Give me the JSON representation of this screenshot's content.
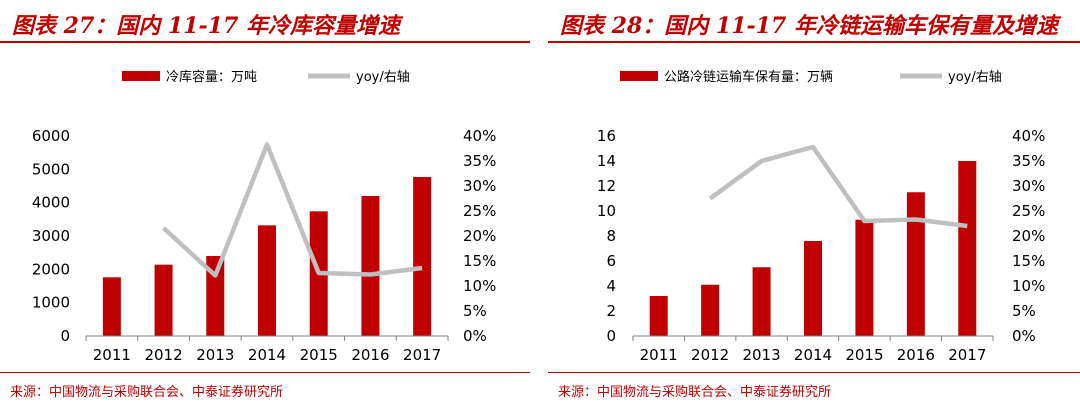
{
  "source_text": "来源：中国物流与采购联合会、中泰证券研究所",
  "charts": [
    {
      "figure_title": "图表 27：国内 11-17 年冷库容量增速",
      "chart_data": {
        "type": "bar",
        "categories": [
          "2011",
          "2012",
          "2013",
          "2014",
          "2015",
          "2016",
          "2017"
        ],
        "series": [
          {
            "name": "冷库容量：万吨",
            "type": "bar",
            "axis": "left",
            "color": "#c00000",
            "values": [
              1760,
              2140,
              2400,
              3320,
              3740,
              4200,
              4770
            ]
          },
          {
            "name": "yoy/右轴",
            "type": "line",
            "axis": "right",
            "color": "#bfbfbf",
            "values": [
              null,
              21.6,
              12.1,
              38.3,
              12.6,
              12.3,
              13.6
            ]
          }
        ],
        "y_left": {
          "min": 0,
          "max": 6000,
          "ticks": [
            0,
            1000,
            2000,
            3000,
            4000,
            5000,
            6000
          ],
          "tick_labels": [
            "0",
            "1000",
            "2000",
            "3000",
            "4000",
            "5000",
            "6000"
          ]
        },
        "y_right": {
          "min": 0,
          "max": 40,
          "ticks": [
            0,
            5,
            10,
            15,
            20,
            25,
            30,
            35,
            40
          ],
          "tick_labels": [
            "0%",
            "5%",
            "10%",
            "15%",
            "20%",
            "25%",
            "30%",
            "35%",
            "40%"
          ]
        },
        "legend_position": "top",
        "grid": false
      }
    },
    {
      "figure_title": "图表 28：国内 11-17 年冷链运输车保有量及增速",
      "chart_data": {
        "type": "bar",
        "categories": [
          "2011",
          "2012",
          "2013",
          "2014",
          "2015",
          "2016",
          "2017"
        ],
        "series": [
          {
            "name": "公路冷链运输车保有量：万辆",
            "type": "bar",
            "axis": "left",
            "color": "#c00000",
            "values": [
              3.2,
              4.1,
              5.5,
              7.6,
              9.3,
              11.5,
              14.0
            ]
          },
          {
            "name": "yoy/右轴",
            "type": "line",
            "axis": "right",
            "color": "#bfbfbf",
            "values": [
              null,
              27.5,
              35.0,
              37.8,
              23.0,
              23.3,
              22.0
            ]
          }
        ],
        "y_left": {
          "min": 0,
          "max": 16,
          "ticks": [
            0,
            2,
            4,
            6,
            8,
            10,
            12,
            14,
            16
          ],
          "tick_labels": [
            "0",
            "2",
            "4",
            "6",
            "8",
            "10",
            "12",
            "14",
            "16"
          ]
        },
        "y_right": {
          "min": 0,
          "max": 40,
          "ticks": [
            0,
            5,
            10,
            15,
            20,
            25,
            30,
            35,
            40
          ],
          "tick_labels": [
            "0%",
            "5%",
            "10%",
            "15%",
            "20%",
            "25%",
            "30%",
            "35%",
            "40%"
          ]
        },
        "legend_position": "top",
        "grid": false
      }
    }
  ]
}
